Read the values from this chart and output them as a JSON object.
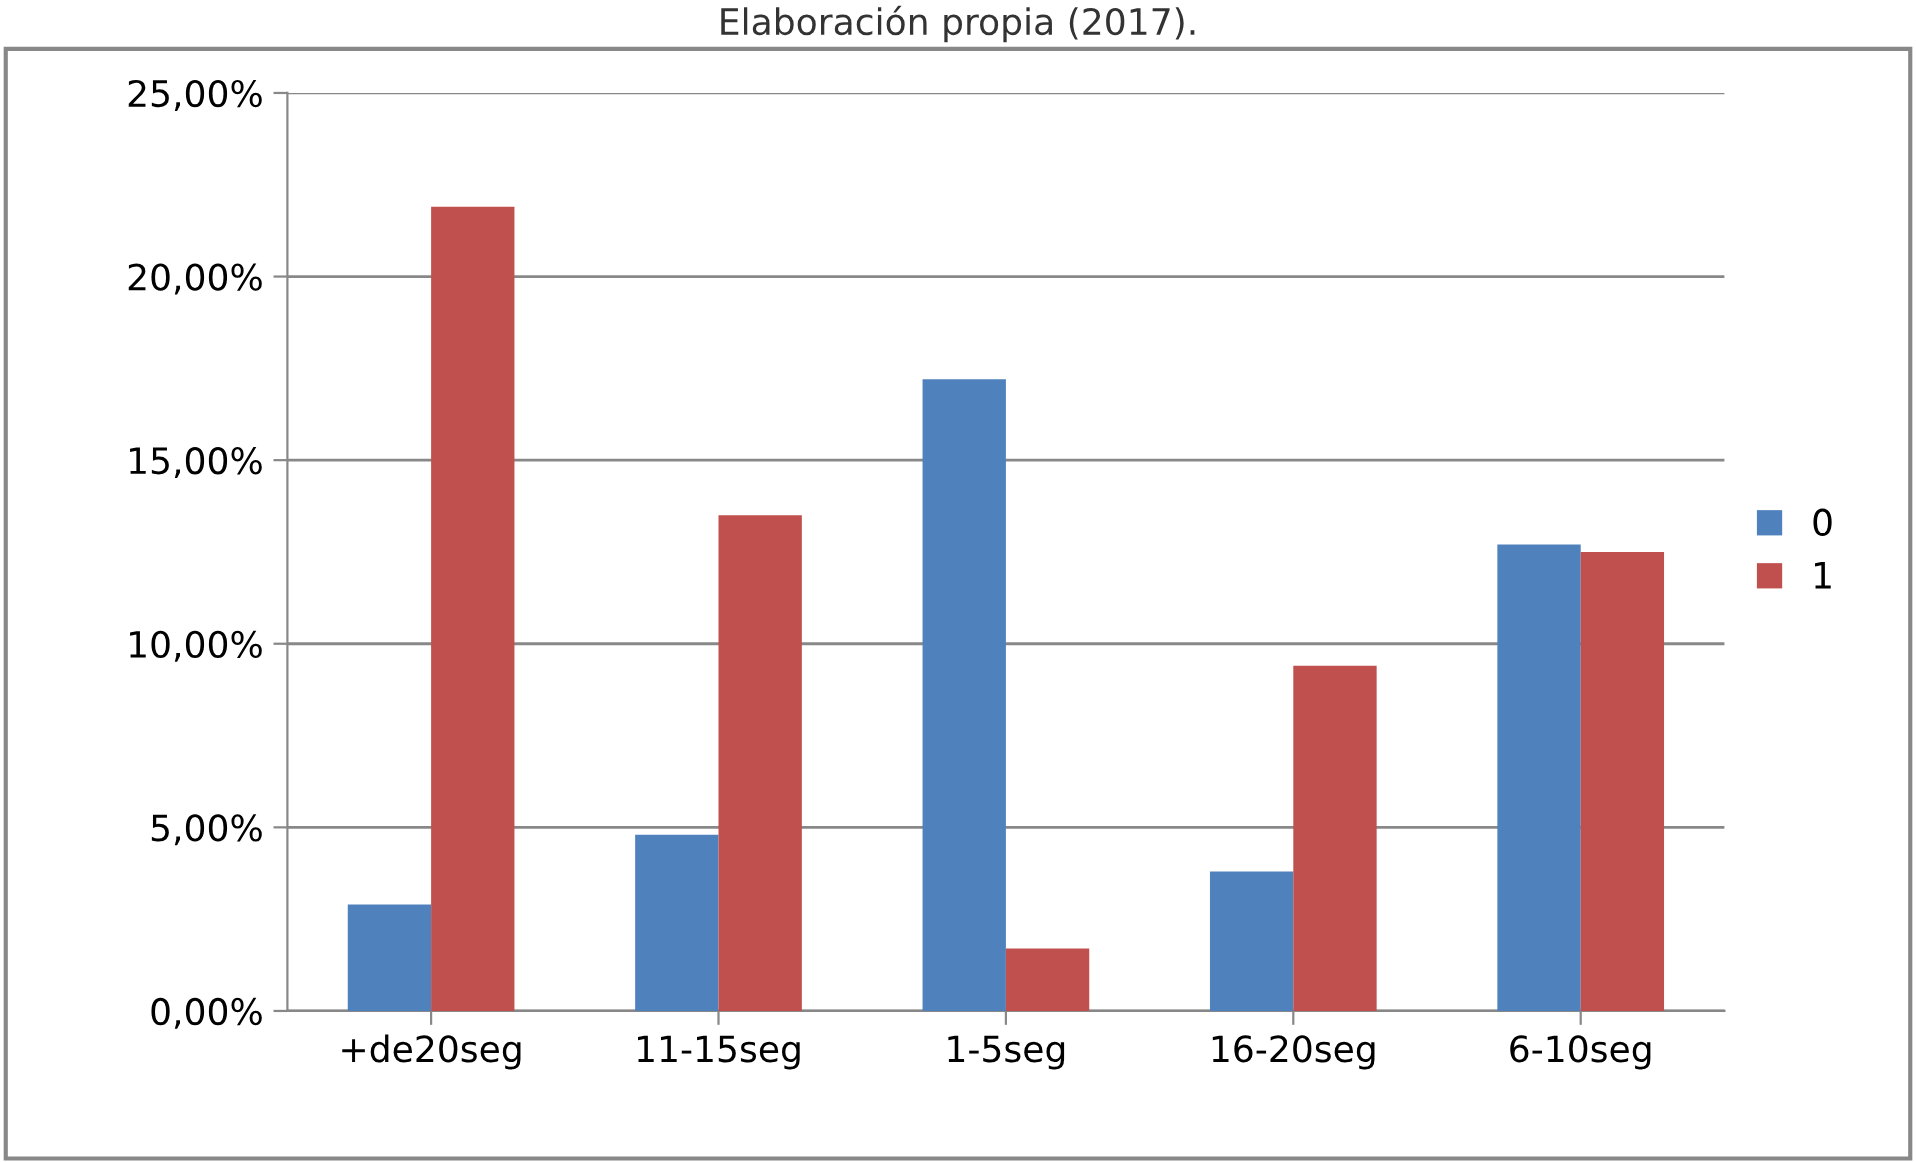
{
  "chart_data": {
    "type": "bar",
    "annotations": [
      "Elaboración propia (2017)."
    ],
    "categories": [
      "+de20seg",
      "11-15seg",
      "1-5seg",
      "16-20seg",
      "6-10seg"
    ],
    "series": [
      {
        "name": "0",
        "color": "#4f81bd",
        "values": [
          2.9,
          4.8,
          17.2,
          3.8,
          12.7
        ]
      },
      {
        "name": "1",
        "color": "#c0504d",
        "values": [
          21.9,
          13.5,
          1.7,
          9.4,
          12.5
        ]
      }
    ],
    "ylim": [
      0,
      25
    ],
    "yticks": [
      {
        "value": 0,
        "label": "0,00%"
      },
      {
        "value": 5,
        "label": "5,00%"
      },
      {
        "value": 10,
        "label": "10,00%"
      },
      {
        "value": 15,
        "label": "15,00%"
      },
      {
        "value": 20,
        "label": "20,00%"
      },
      {
        "value": 25,
        "label": "25,00%"
      }
    ],
    "grid": "y",
    "legend": "right"
  }
}
